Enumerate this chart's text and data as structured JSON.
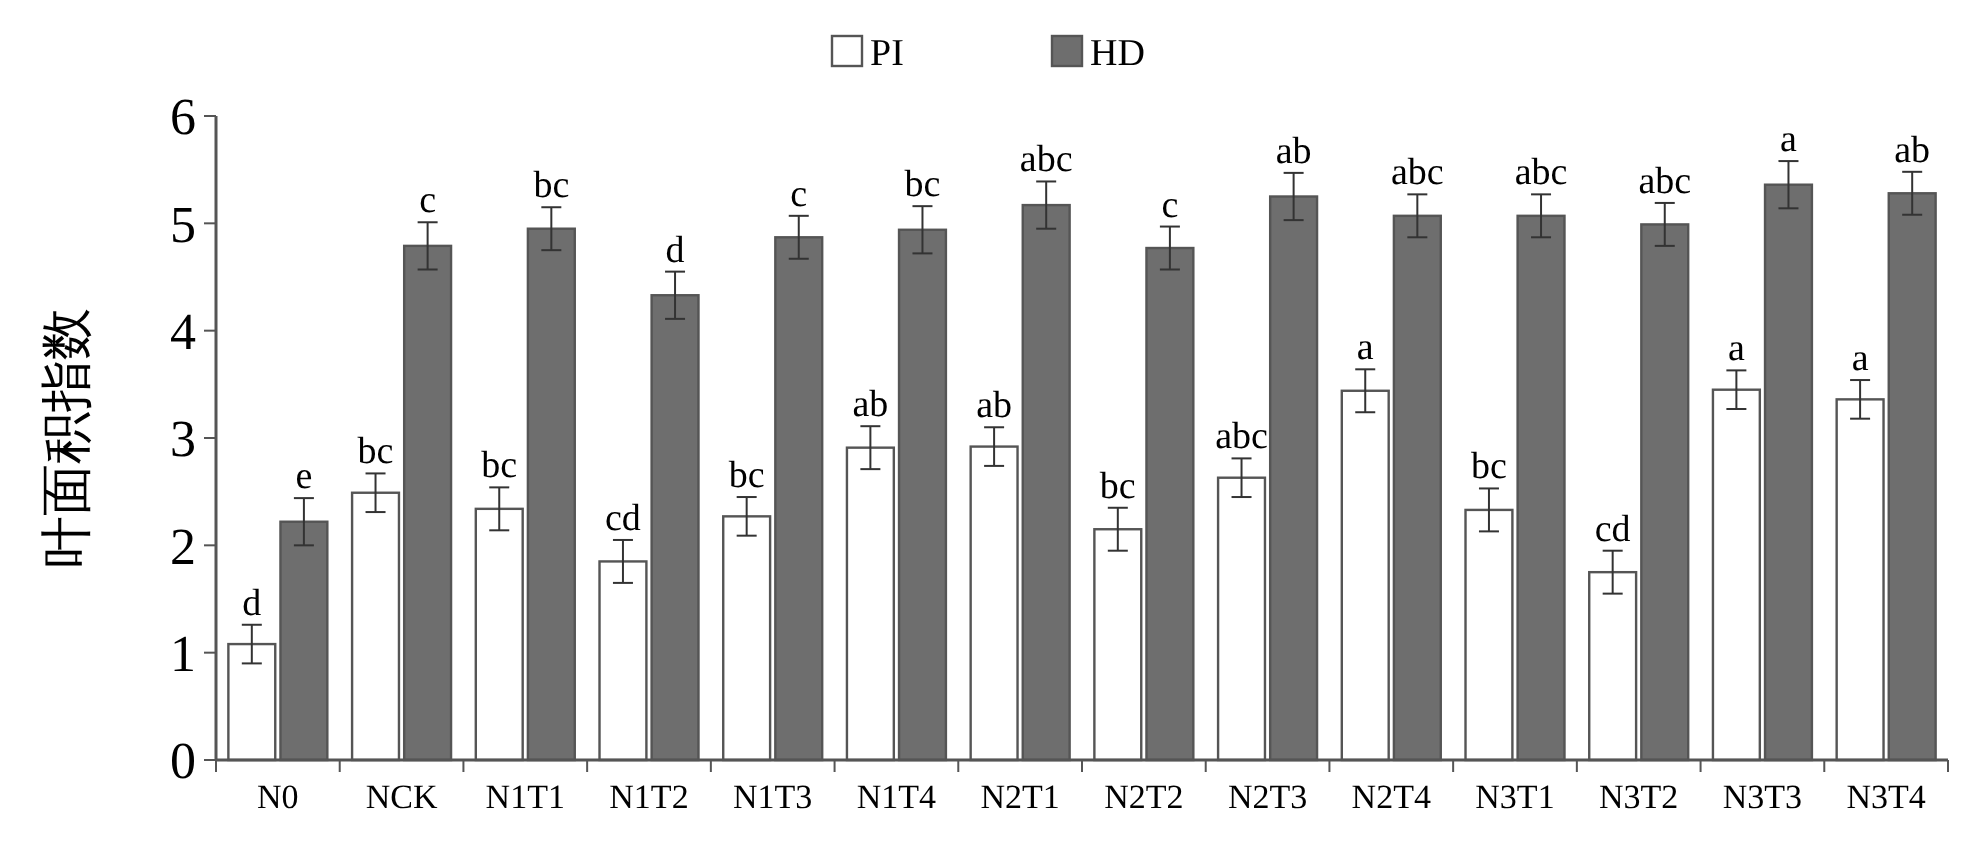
{
  "chart_data": {
    "type": "bar",
    "ylabel": "叶面积指数",
    "categories": [
      "N0",
      "NCK",
      "N1T1",
      "N1T2",
      "N1T3",
      "N1T4",
      "N2T1",
      "N2T2",
      "N2T3",
      "N2T4",
      "N3T1",
      "N3T2",
      "N3T3",
      "N3T4"
    ],
    "series": [
      {
        "name": "PI",
        "color": "#ffffff",
        "values": [
          1.08,
          2.49,
          2.34,
          1.85,
          2.27,
          2.91,
          2.92,
          2.15,
          2.63,
          3.44,
          2.33,
          1.75,
          3.45,
          3.36
        ],
        "errors": [
          0.18,
          0.18,
          0.2,
          0.2,
          0.18,
          0.2,
          0.18,
          0.2,
          0.18,
          0.2,
          0.2,
          0.2,
          0.18,
          0.18
        ],
        "value_labels": [
          "d",
          "bc",
          "bc",
          "cd",
          "bc",
          "ab",
          "ab",
          "bc",
          "abc",
          "a",
          "bc",
          "cd",
          "a",
          "a"
        ]
      },
      {
        "name": "HD",
        "color": "#6e6e6e",
        "values": [
          2.22,
          4.79,
          4.95,
          4.33,
          4.87,
          4.94,
          5.17,
          4.77,
          5.25,
          5.07,
          5.07,
          4.99,
          5.36,
          5.28
        ],
        "errors": [
          0.22,
          0.22,
          0.2,
          0.22,
          0.2,
          0.22,
          0.22,
          0.2,
          0.22,
          0.2,
          0.2,
          0.2,
          0.22,
          0.2
        ],
        "value_labels": [
          "e",
          "c",
          "bc",
          "d",
          "c",
          "bc",
          "abc",
          "c",
          "ab",
          "abc",
          "abc",
          "abc",
          "a",
          "ab"
        ]
      }
    ],
    "ylim": [
      0,
      6
    ],
    "yticks": [
      0,
      1,
      2,
      3,
      4,
      5,
      6
    ],
    "grid": false,
    "legend": "top"
  }
}
